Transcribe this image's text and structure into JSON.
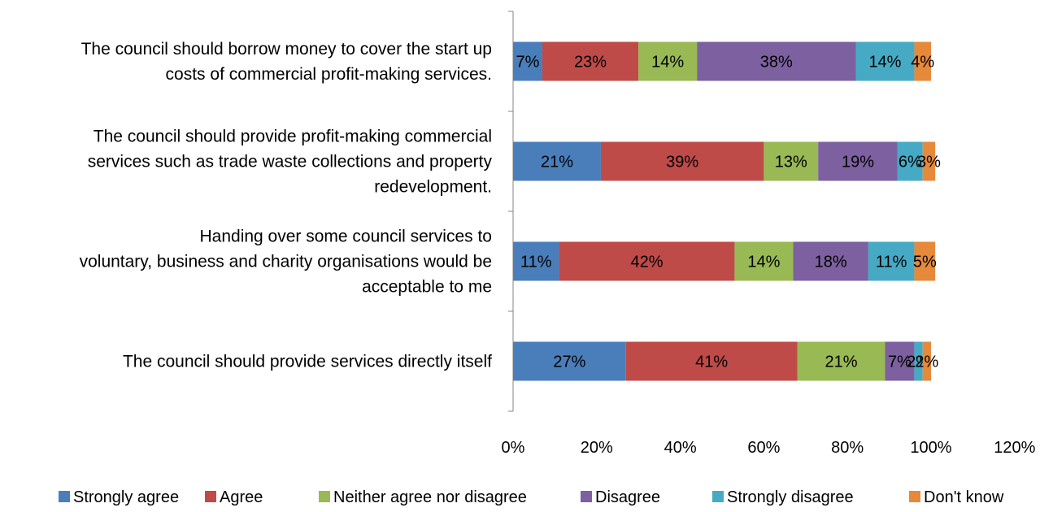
{
  "chart_data": {
    "type": "bar",
    "orientation": "horizontal",
    "stacked": true,
    "categories": [
      [
        "The council should borrow money to cover the start up",
        "costs of commercial profit-making services."
      ],
      [
        "The council should provide profit-making commercial",
        "services such as trade waste collections and property",
        "redevelopment."
      ],
      [
        "Handing over some council services to",
        "voluntary, business and charity organisations would be",
        "acceptable to me"
      ],
      [
        "The council should provide services directly itself"
      ]
    ],
    "series": [
      {
        "name": "Strongly agree",
        "color": "#4a7ebb",
        "values": [
          7,
          21,
          11,
          27
        ]
      },
      {
        "name": "Agree",
        "color": "#be4b48",
        "values": [
          23,
          39,
          42,
          41
        ]
      },
      {
        "name": "Neither agree nor disagree",
        "color": "#98b954",
        "values": [
          14,
          13,
          14,
          21
        ]
      },
      {
        "name": "Disagree",
        "color": "#7d60a0",
        "values": [
          38,
          19,
          18,
          7
        ]
      },
      {
        "name": "Strongly disagree",
        "color": "#46aac5",
        "values": [
          14,
          6,
          11,
          2
        ]
      },
      {
        "name": "Don't know",
        "color": "#e6893b",
        "values": [
          4,
          3,
          5,
          2
        ]
      }
    ],
    "data_labels": [
      [
        "7%",
        "23%",
        "14%",
        "38%",
        "14%",
        "4%"
      ],
      [
        "21%",
        "39%",
        "13%",
        "19%",
        "6%",
        "3%"
      ],
      [
        "11%",
        "42%",
        "14%",
        "18%",
        "11%",
        "5%"
      ],
      [
        "27%",
        "41%",
        "21%",
        "7%",
        "2%",
        "2%"
      ]
    ],
    "xlim": [
      0,
      120
    ],
    "xticks": [
      "0%",
      "20%",
      "40%",
      "60%",
      "80%",
      "100%",
      "120%"
    ],
    "grid": false,
    "legend_position": "bottom"
  }
}
